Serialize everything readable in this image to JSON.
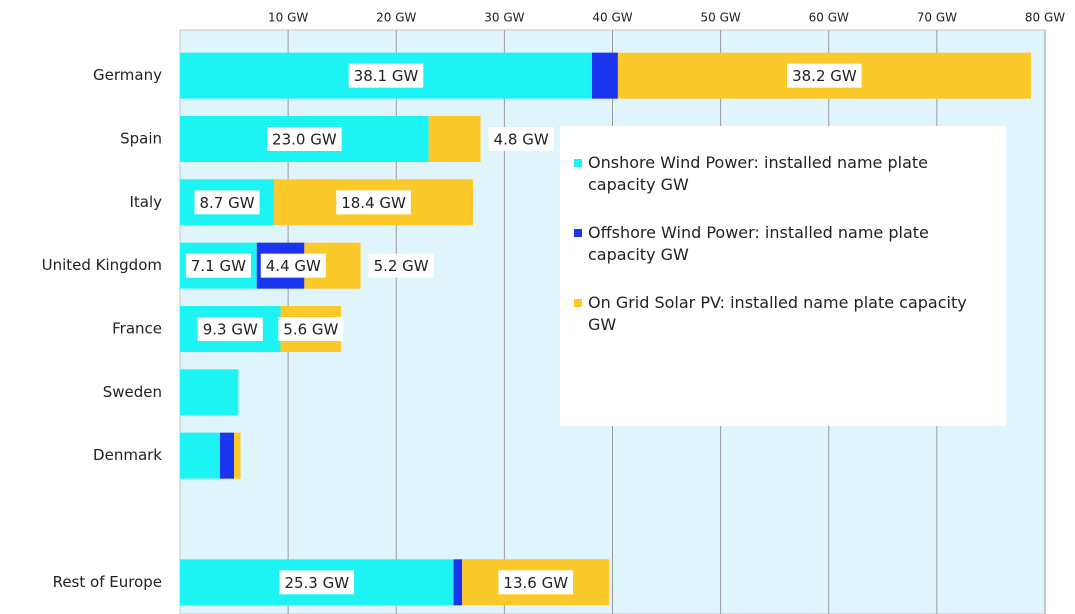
{
  "chart_data": {
    "type": "stacked-barh",
    "categories": [
      "Germany",
      "Spain",
      "Italy",
      "United Kingdom",
      "France",
      "Sweden",
      "Denmark",
      null,
      "Rest of Europe"
    ],
    "series": [
      {
        "name": "Onshore Wind Power: installed name plate capacity GW",
        "color": "#1ef3f3",
        "values": [
          38.1,
          23.0,
          8.7,
          7.1,
          9.3,
          5.4,
          3.7,
          null,
          25.3
        ],
        "value_labels": [
          "38.1 GW",
          "23.0 GW",
          "8.7 GW",
          "7.1 GW",
          "9.3 GW",
          null,
          null,
          null,
          "25.3 GW"
        ]
      },
      {
        "name": "Offshore Wind Power: installed name plate capacity GW",
        "color": "#1b35ee",
        "values": [
          2.4,
          0,
          0,
          4.4,
          0,
          0,
          1.3,
          null,
          0.8
        ],
        "value_labels": [
          null,
          null,
          null,
          "4.4 GW",
          null,
          null,
          null,
          null,
          null
        ]
      },
      {
        "name": "On Grid Solar PV:  installed name plate capacity  GW",
        "color": "#fcc92a",
        "values": [
          38.2,
          4.8,
          18.4,
          5.2,
          5.6,
          0,
          0.6,
          null,
          13.6
        ],
        "value_labels": [
          "38.2 GW",
          "4.8 GW",
          "18.4 GW",
          "5.2 GW",
          "5.6 GW",
          null,
          null,
          null,
          "13.6 GW"
        ]
      }
    ],
    "xlim": [
      0,
      80
    ],
    "xticks": [
      {
        "value": 10,
        "label": "10 GW"
      },
      {
        "value": 20,
        "label": "20 GW"
      },
      {
        "value": 30,
        "label": "30 GW"
      },
      {
        "value": 40,
        "label": "40 GW"
      },
      {
        "value": 50,
        "label": "50 GW"
      },
      {
        "value": 60,
        "label": "60 GW"
      },
      {
        "value": 70,
        "label": "70 GW"
      },
      {
        "value": 80,
        "label": "80 GW"
      }
    ],
    "grid": true
  }
}
